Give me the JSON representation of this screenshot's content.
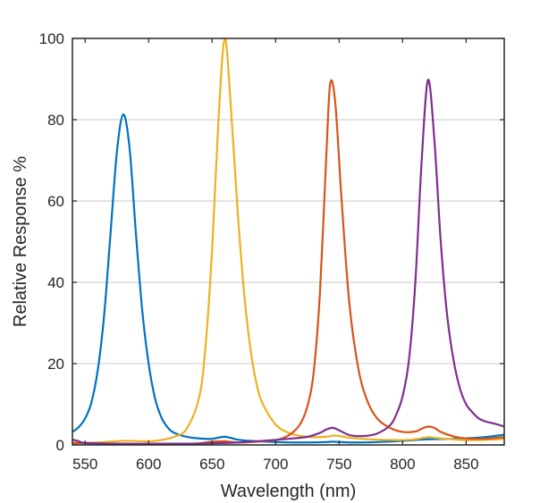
{
  "chart_data": {
    "type": "line",
    "title": "",
    "xlabel": "Wavelength (nm)",
    "ylabel": "Relative Response %",
    "xlim": [
      540,
      880
    ],
    "ylim": [
      0,
      100
    ],
    "xticks": [
      550,
      600,
      650,
      700,
      750,
      800,
      850
    ],
    "yticks": [
      0,
      20,
      40,
      60,
      80,
      100
    ],
    "x_tick_labels": [
      "550",
      "600",
      "650",
      "700",
      "750",
      "800",
      "850"
    ],
    "y_tick_labels": [
      "0",
      "20",
      "40",
      "60",
      "80",
      "100"
    ],
    "grid": "horizontal",
    "legend": "none",
    "series": [
      {
        "color": "#0072BD",
        "points": [
          [
            540,
            3.2
          ],
          [
            545,
            4.4
          ],
          [
            550,
            6.5
          ],
          [
            555,
            10.5
          ],
          [
            560,
            18.5
          ],
          [
            565,
            32
          ],
          [
            570,
            52
          ],
          [
            575,
            72
          ],
          [
            580,
            81.3
          ],
          [
            585,
            73
          ],
          [
            590,
            52
          ],
          [
            595,
            33
          ],
          [
            600,
            20
          ],
          [
            605,
            11.5
          ],
          [
            610,
            6.8
          ],
          [
            615,
            4.3
          ],
          [
            620,
            3.0
          ],
          [
            630,
            2.0
          ],
          [
            640,
            1.6
          ],
          [
            650,
            1.5
          ],
          [
            655,
            1.8
          ],
          [
            660,
            2.0
          ],
          [
            665,
            1.7
          ],
          [
            670,
            1.3
          ],
          [
            680,
            1.0
          ],
          [
            700,
            0.7
          ],
          [
            720,
            0.6
          ],
          [
            740,
            0.7
          ],
          [
            745,
            0.8
          ],
          [
            760,
            0.6
          ],
          [
            780,
            0.7
          ],
          [
            800,
            1.0
          ],
          [
            820,
            1.4
          ],
          [
            840,
            1.5
          ],
          [
            860,
            1.8
          ],
          [
            870,
            2.1
          ],
          [
            880,
            2.5
          ]
        ]
      },
      {
        "color": "#EDB120",
        "points": [
          [
            540,
            0.4
          ],
          [
            560,
            0.6
          ],
          [
            580,
            1.0
          ],
          [
            600,
            0.9
          ],
          [
            610,
            1.2
          ],
          [
            620,
            2.0
          ],
          [
            630,
            4.0
          ],
          [
            640,
            12
          ],
          [
            645,
            25
          ],
          [
            650,
            48
          ],
          [
            655,
            80
          ],
          [
            660,
            100
          ],
          [
            665,
            82
          ],
          [
            670,
            58
          ],
          [
            675,
            38
          ],
          [
            680,
            24
          ],
          [
            685,
            15
          ],
          [
            690,
            10
          ],
          [
            700,
            5
          ],
          [
            710,
            3
          ],
          [
            720,
            2.2
          ],
          [
            730,
            1.9
          ],
          [
            740,
            2.0
          ],
          [
            745,
            2.3
          ],
          [
            750,
            2.2
          ],
          [
            760,
            1.7
          ],
          [
            780,
            1.3
          ],
          [
            800,
            1.2
          ],
          [
            810,
            1.4
          ],
          [
            820,
            1.9
          ],
          [
            830,
            1.6
          ],
          [
            850,
            1.2
          ],
          [
            870,
            1.3
          ],
          [
            880,
            1.5
          ]
        ]
      },
      {
        "color": "#D95319",
        "points": [
          [
            540,
            0.5
          ],
          [
            560,
            0.4
          ],
          [
            580,
            0.3
          ],
          [
            600,
            0.2
          ],
          [
            620,
            0.2
          ],
          [
            640,
            0.4
          ],
          [
            650,
            0.8
          ],
          [
            660,
            0.9
          ],
          [
            670,
            0.6
          ],
          [
            680,
            0.7
          ],
          [
            690,
            0.9
          ],
          [
            700,
            1.2
          ],
          [
            705,
            1.6
          ],
          [
            710,
            2.3
          ],
          [
            715,
            3.5
          ],
          [
            720,
            5.5
          ],
          [
            725,
            9.5
          ],
          [
            730,
            18
          ],
          [
            735,
            38
          ],
          [
            740,
            72
          ],
          [
            743,
            89
          ],
          [
            747,
            84
          ],
          [
            752,
            60
          ],
          [
            758,
            35
          ],
          [
            765,
            19
          ],
          [
            772,
            11
          ],
          [
            780,
            6.5
          ],
          [
            790,
            4.2
          ],
          [
            800,
            3.2
          ],
          [
            810,
            3.3
          ],
          [
            815,
            4.0
          ],
          [
            820,
            4.5
          ],
          [
            825,
            4.2
          ],
          [
            830,
            3.2
          ],
          [
            840,
            2.1
          ],
          [
            850,
            1.6
          ],
          [
            860,
            1.5
          ],
          [
            870,
            1.6
          ],
          [
            880,
            1.9
          ]
        ]
      },
      {
        "color": "#7E2F8E",
        "points": [
          [
            540,
            1.3
          ],
          [
            545,
            0.9
          ],
          [
            550,
            0.5
          ],
          [
            570,
            0.3
          ],
          [
            600,
            0.3
          ],
          [
            630,
            0.3
          ],
          [
            650,
            0.4
          ],
          [
            670,
            0.6
          ],
          [
            690,
            1.0
          ],
          [
            710,
            1.5
          ],
          [
            725,
            2.0
          ],
          [
            735,
            3.0
          ],
          [
            740,
            3.8
          ],
          [
            745,
            4.2
          ],
          [
            750,
            3.6
          ],
          [
            755,
            2.8
          ],
          [
            760,
            2.3
          ],
          [
            770,
            2.2
          ],
          [
            780,
            2.8
          ],
          [
            790,
            4.8
          ],
          [
            795,
            7.5
          ],
          [
            800,
            12
          ],
          [
            805,
            21
          ],
          [
            810,
            40
          ],
          [
            815,
            70
          ],
          [
            820,
            89.8
          ],
          [
            825,
            75
          ],
          [
            830,
            50
          ],
          [
            835,
            32
          ],
          [
            840,
            21
          ],
          [
            845,
            14
          ],
          [
            850,
            10
          ],
          [
            855,
            8
          ],
          [
            860,
            6.5
          ],
          [
            865,
            5.8
          ],
          [
            870,
            5.4
          ],
          [
            875,
            5.0
          ],
          [
            880,
            4.5
          ]
        ]
      }
    ]
  }
}
